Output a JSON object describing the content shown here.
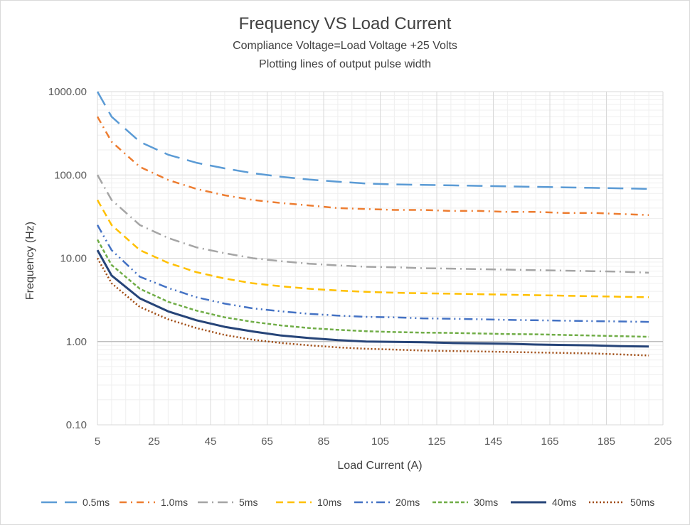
{
  "chart_data": {
    "type": "line",
    "title": "Frequency VS Load Current",
    "subtitle": "Compliance Voltage=Load Voltage +25 Volts",
    "subtitle2": "Plotting lines of output pulse width",
    "xlabel": "Load Current (A)",
    "ylabel": "Frequency (Hz)",
    "xlim": [
      5,
      205
    ],
    "ylim": [
      0.1,
      1000
    ],
    "yscale": "log",
    "xticks": [
      "5",
      "25",
      "45",
      "65",
      "85",
      "105",
      "125",
      "145",
      "165",
      "185",
      "205"
    ],
    "yticks": [
      "0.10",
      "1.00",
      "10.00",
      "100.00",
      "1000.00"
    ],
    "grid": true,
    "legend_position": "bottom",
    "x": [
      5,
      10,
      20,
      30,
      40,
      50,
      60,
      70,
      80,
      90,
      100,
      110,
      120,
      130,
      140,
      150,
      160,
      170,
      180,
      190,
      200
    ],
    "series": [
      {
        "name": "0.5ms",
        "color": "#5b9bd5",
        "dash": "22,11",
        "values": [
          1000,
          500,
          250,
          175,
          140,
          120,
          105,
          95,
          88,
          83,
          79,
          77,
          76,
          75,
          74,
          73,
          72,
          71,
          70,
          69,
          68
        ]
      },
      {
        "name": "1.0ms",
        "color": "#ed7d31",
        "dash": "10,6,2,6",
        "values": [
          500,
          250,
          125,
          87,
          68,
          57,
          50,
          46,
          43,
          40,
          39,
          38,
          38,
          37,
          37,
          36,
          36,
          35,
          35,
          34,
          33
        ]
      },
      {
        "name": "5ms",
        "color": "#a5a5a5",
        "dash": "14,6,2,6",
        "values": [
          100,
          50,
          25,
          17.5,
          13.5,
          11.5,
          10,
          9.2,
          8.6,
          8.2,
          7.9,
          7.8,
          7.6,
          7.5,
          7.4,
          7.3,
          7.2,
          7.1,
          7.0,
          6.9,
          6.7
        ]
      },
      {
        "name": "10ms",
        "color": "#ffc000",
        "dash": "10,6",
        "values": [
          50,
          25,
          12.5,
          8.8,
          6.8,
          5.7,
          5.0,
          4.6,
          4.3,
          4.1,
          3.95,
          3.85,
          3.8,
          3.75,
          3.7,
          3.65,
          3.6,
          3.55,
          3.5,
          3.45,
          3.4
        ]
      },
      {
        "name": "20ms",
        "color": "#4472c4",
        "dash": "12,5,2,5,2,5",
        "values": [
          25,
          12.5,
          6.0,
          4.4,
          3.4,
          2.85,
          2.5,
          2.3,
          2.15,
          2.05,
          1.98,
          1.95,
          1.9,
          1.88,
          1.85,
          1.82,
          1.8,
          1.78,
          1.76,
          1.74,
          1.72
        ]
      },
      {
        "name": "30ms",
        "color": "#70ad47",
        "dash": "5,3",
        "values": [
          16.7,
          8.3,
          4.3,
          3.0,
          2.35,
          1.95,
          1.72,
          1.56,
          1.45,
          1.38,
          1.33,
          1.3,
          1.28,
          1.27,
          1.25,
          1.23,
          1.22,
          1.2,
          1.18,
          1.16,
          1.14
        ]
      },
      {
        "name": "40ms",
        "color": "#264478",
        "dash": "",
        "values": [
          12.5,
          6.2,
          3.3,
          2.3,
          1.8,
          1.5,
          1.32,
          1.18,
          1.1,
          1.04,
          1.0,
          0.99,
          0.98,
          0.96,
          0.95,
          0.94,
          0.92,
          0.91,
          0.9,
          0.88,
          0.87
        ]
      },
      {
        "name": "50ms",
        "color": "#9e480e",
        "dash": "2,3",
        "values": [
          10,
          5.0,
          2.6,
          1.85,
          1.45,
          1.2,
          1.05,
          0.96,
          0.9,
          0.85,
          0.82,
          0.8,
          0.78,
          0.77,
          0.76,
          0.75,
          0.74,
          0.73,
          0.72,
          0.7,
          0.68
        ]
      }
    ]
  }
}
